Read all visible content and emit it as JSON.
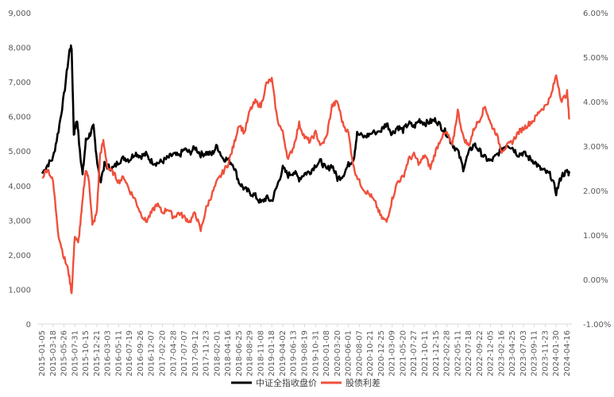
{
  "chart_data": {
    "type": "line",
    "title": "",
    "xlabel": "",
    "ylabel": "",
    "y_left_lim": [
      0,
      9000
    ],
    "y_left_ticks": [
      "0",
      "1,000",
      "2,000",
      "3,000",
      "4,000",
      "5,000",
      "6,000",
      "7,000",
      "8,000",
      "9,000"
    ],
    "y_right_lim": [
      -1.0,
      6.0
    ],
    "y_right_ticks": [
      "-1.00%",
      "0.00%",
      "1.00%",
      "2.00%",
      "3.00%",
      "4.00%",
      "5.00%",
      "6.00%"
    ],
    "grid": false,
    "legend_position": "bottom",
    "x_tick_labels": [
      "2015-01-05",
      "2015-03-18",
      "2015-05-26",
      "2015-07-31",
      "2015-10-15",
      "2015-12-21",
      "2016-03-03",
      "2016-05-11",
      "2016-07-19",
      "2016-09-26",
      "2016-12-07",
      "2017-02-20",
      "2017-04-28",
      "2017-07-07",
      "2017-09-12",
      "2017-11-23",
      "2018-02-01",
      "2018-04-16",
      "2018-06-25",
      "2018-08-29",
      "2018-11-08",
      "2019-01-18",
      "2019-04-02",
      "2019-06-13",
      "2019-08-19",
      "2019-10-31",
      "2020-01-08",
      "2020-03-20",
      "2020-06-01",
      "2020-08-07",
      "2020-10-21",
      "2020-12-25",
      "2021-03-09",
      "2021-05-20",
      "2021-07-27",
      "2021-10-11",
      "2021-12-15",
      "2022-02-28",
      "2022-05-11",
      "2022-07-18",
      "2022-09-22",
      "2022-12-05",
      "2023-02-16",
      "2023-04-25",
      "2023-07-03",
      "2023-09-11",
      "2023-11-23",
      "2024-01-30",
      "2024-04-16"
    ],
    "series": [
      {
        "name": "中证全指收盘价",
        "axis": "left",
        "color": "#000000",
        "points": [
          [
            0,
            4350
          ],
          [
            0.5,
            4600
          ],
          [
            1,
            4800
          ],
          [
            1.5,
            5600
          ],
          [
            2,
            6600
          ],
          [
            2.5,
            7900
          ],
          [
            2.7,
            8000
          ],
          [
            2.9,
            5500
          ],
          [
            3.2,
            5900
          ],
          [
            3.4,
            5200
          ],
          [
            3.7,
            4300
          ],
          [
            4,
            5300
          ],
          [
            4.4,
            5500
          ],
          [
            4.7,
            5700
          ],
          [
            5,
            4800
          ],
          [
            5.3,
            4100
          ],
          [
            5.7,
            4600
          ],
          [
            6,
            4550
          ],
          [
            6.5,
            4500
          ],
          [
            7,
            4700
          ],
          [
            7.5,
            4800
          ],
          [
            8,
            4750
          ],
          [
            8.5,
            4950
          ],
          [
            9,
            4850
          ],
          [
            9.5,
            4900
          ],
          [
            10,
            4700
          ],
          [
            10.5,
            4650
          ],
          [
            11,
            4700
          ],
          [
            11.5,
            4800
          ],
          [
            12,
            4900
          ],
          [
            12.5,
            4850
          ],
          [
            13,
            5050
          ],
          [
            13.5,
            4950
          ],
          [
            14,
            5100
          ],
          [
            14.5,
            4900
          ],
          [
            15,
            4950
          ],
          [
            15.5,
            4900
          ],
          [
            16,
            5150
          ],
          [
            16.5,
            4800
          ],
          [
            17,
            4750
          ],
          [
            17.5,
            4600
          ],
          [
            18,
            4100
          ],
          [
            18.5,
            3900
          ],
          [
            19,
            3800
          ],
          [
            19.5,
            3700
          ],
          [
            20,
            3500
          ],
          [
            20.5,
            3650
          ],
          [
            21,
            3550
          ],
          [
            21.5,
            4000
          ],
          [
            22,
            4500
          ],
          [
            22.5,
            4300
          ],
          [
            23,
            4400
          ],
          [
            23.5,
            4200
          ],
          [
            24,
            4350
          ],
          [
            24.5,
            4400
          ],
          [
            25,
            4600
          ],
          [
            25.5,
            4700
          ],
          [
            26,
            4450
          ],
          [
            26.5,
            4600
          ],
          [
            27,
            4200
          ],
          [
            27.5,
            4300
          ],
          [
            28,
            4600
          ],
          [
            28.5,
            4800
          ],
          [
            28.8,
            5500
          ],
          [
            29.5,
            5400
          ],
          [
            30,
            5500
          ],
          [
            31,
            5600
          ],
          [
            31.5,
            5800
          ],
          [
            32,
            5500
          ],
          [
            32.5,
            5700
          ],
          [
            33,
            5600
          ],
          [
            33.5,
            5800
          ],
          [
            34,
            5700
          ],
          [
            34.5,
            5900
          ],
          [
            35,
            5800
          ],
          [
            35.5,
            5850
          ],
          [
            36,
            5900
          ],
          [
            36.5,
            5700
          ],
          [
            37,
            5500
          ],
          [
            37.5,
            5200
          ],
          [
            38,
            5000
          ],
          [
            38.5,
            4500
          ],
          [
            39,
            4950
          ],
          [
            39.5,
            5200
          ],
          [
            40,
            5000
          ],
          [
            40.5,
            4800
          ],
          [
            41,
            4700
          ],
          [
            41.5,
            4850
          ],
          [
            42,
            5050
          ],
          [
            42.5,
            5200
          ],
          [
            43,
            5100
          ],
          [
            43.5,
            4900
          ],
          [
            44,
            4950
          ],
          [
            44.5,
            4800
          ],
          [
            45,
            4700
          ],
          [
            45.5,
            4500
          ],
          [
            46,
            4400
          ],
          [
            46.5,
            4300
          ],
          [
            47,
            3800
          ],
          [
            47.5,
            4300
          ],
          [
            48,
            4400
          ],
          [
            48.2,
            4350
          ]
        ]
      },
      {
        "name": "股债利差",
        "axis": "right",
        "color": "#f0503c",
        "points": [
          [
            0,
            2.3
          ],
          [
            0.5,
            2.5
          ],
          [
            1,
            2.2
          ],
          [
            1.5,
            1.0
          ],
          [
            2,
            0.5
          ],
          [
            2.4,
            0.2
          ],
          [
            2.7,
            -0.3
          ],
          [
            3,
            1.0
          ],
          [
            3.3,
            0.8
          ],
          [
            3.6,
            1.5
          ],
          [
            4,
            2.5
          ],
          [
            4.3,
            2.2
          ],
          [
            4.6,
            1.2
          ],
          [
            5,
            1.5
          ],
          [
            5.3,
            2.8
          ],
          [
            5.6,
            3.1
          ],
          [
            6,
            2.5
          ],
          [
            6.5,
            2.4
          ],
          [
            7,
            2.2
          ],
          [
            7.5,
            2.3
          ],
          [
            8,
            2.0
          ],
          [
            8.5,
            1.8
          ],
          [
            9,
            1.5
          ],
          [
            9.5,
            1.3
          ],
          [
            10,
            1.5
          ],
          [
            10.5,
            1.7
          ],
          [
            11,
            1.5
          ],
          [
            11.5,
            1.6
          ],
          [
            12,
            1.4
          ],
          [
            12.5,
            1.5
          ],
          [
            13,
            1.4
          ],
          [
            13.5,
            1.3
          ],
          [
            14,
            1.5
          ],
          [
            14.5,
            1.1
          ],
          [
            15,
            1.6
          ],
          [
            15.5,
            1.9
          ],
          [
            16,
            2.2
          ],
          [
            16.5,
            2.4
          ],
          [
            17,
            2.6
          ],
          [
            17.5,
            3.0
          ],
          [
            18,
            3.5
          ],
          [
            18.5,
            3.3
          ],
          [
            19,
            3.8
          ],
          [
            19.5,
            4.0
          ],
          [
            20,
            3.9
          ],
          [
            20.5,
            4.4
          ],
          [
            21,
            4.5
          ],
          [
            21.5,
            3.6
          ],
          [
            22,
            3.3
          ],
          [
            22.5,
            2.7
          ],
          [
            23,
            3.0
          ],
          [
            23.5,
            3.5
          ],
          [
            24,
            3.2
          ],
          [
            24.5,
            3.1
          ],
          [
            25,
            3.3
          ],
          [
            25.5,
            3.0
          ],
          [
            26,
            3.2
          ],
          [
            26.5,
            3.9
          ],
          [
            27,
            4.0
          ],
          [
            27.5,
            3.5
          ],
          [
            28,
            3.3
          ],
          [
            28.5,
            2.5
          ],
          [
            29,
            2.2
          ],
          [
            29.5,
            2.0
          ],
          [
            30,
            1.9
          ],
          [
            30.5,
            1.7
          ],
          [
            31,
            1.4
          ],
          [
            31.5,
            1.3
          ],
          [
            32,
            1.8
          ],
          [
            32.5,
            2.2
          ],
          [
            33,
            2.3
          ],
          [
            33.5,
            2.7
          ],
          [
            34,
            2.8
          ],
          [
            34.5,
            2.6
          ],
          [
            35,
            2.8
          ],
          [
            35.5,
            2.5
          ],
          [
            36,
            2.9
          ],
          [
            36.5,
            3.2
          ],
          [
            37,
            3.3
          ],
          [
            37.5,
            3.0
          ],
          [
            38,
            3.8
          ],
          [
            38.5,
            3.2
          ],
          [
            39,
            3.0
          ],
          [
            39.5,
            3.4
          ],
          [
            40,
            3.6
          ],
          [
            40.5,
            3.9
          ],
          [
            41,
            3.5
          ],
          [
            41.5,
            3.3
          ],
          [
            42,
            2.9
          ],
          [
            42.5,
            3.0
          ],
          [
            43,
            3.1
          ],
          [
            43.5,
            3.3
          ],
          [
            44,
            3.4
          ],
          [
            44.5,
            3.5
          ],
          [
            45,
            3.6
          ],
          [
            45.5,
            3.8
          ],
          [
            46,
            3.9
          ],
          [
            46.5,
            4.1
          ],
          [
            47,
            4.6
          ],
          [
            47.5,
            4.0
          ],
          [
            48,
            4.2
          ],
          [
            48.2,
            3.6
          ]
        ]
      }
    ]
  }
}
